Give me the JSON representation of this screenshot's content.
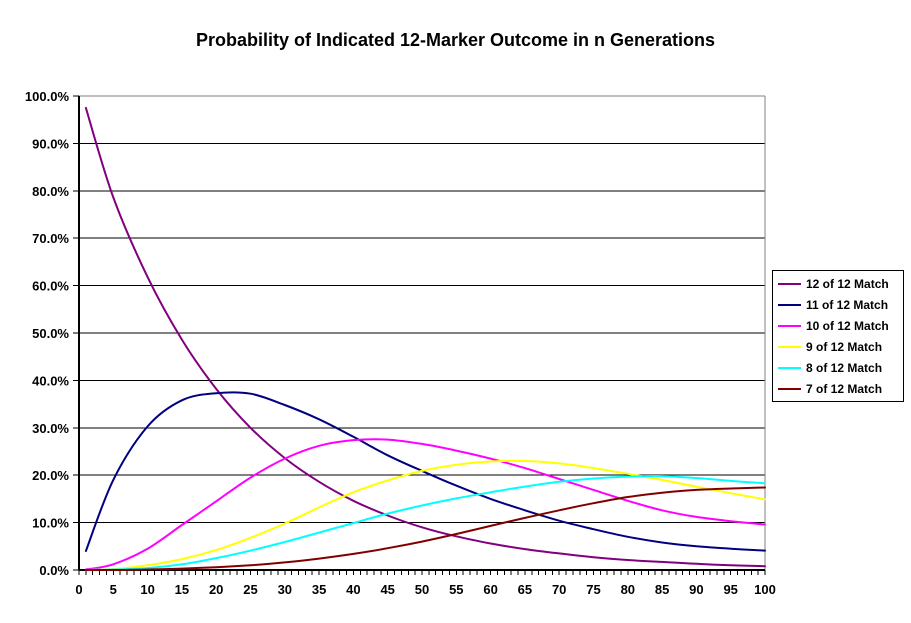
{
  "chart_data": {
    "type": "line",
    "title": "Probability of Indicated 12-Marker Outcome in n Generations",
    "xlabel": "",
    "ylabel": "",
    "x": [
      1,
      5,
      10,
      15,
      20,
      25,
      30,
      35,
      40,
      45,
      50,
      55,
      60,
      65,
      70,
      75,
      80,
      85,
      90,
      95,
      100
    ],
    "x_axis": {
      "min": 0,
      "max": 100,
      "major_tick_step": 5,
      "minor_tick_step": 1,
      "tick_labels": [
        "0",
        "5",
        "10",
        "15",
        "20",
        "25",
        "30",
        "35",
        "40",
        "45",
        "50",
        "55",
        "60",
        "65",
        "70",
        "75",
        "80",
        "85",
        "90",
        "95",
        "100"
      ]
    },
    "y_axis": {
      "min": 0,
      "max": 100,
      "major_tick_step": 10,
      "tick_labels": [
        "100.0%",
        "90.0%",
        "80.0%",
        "70.0%",
        "60.0%",
        "50.0%",
        "40.0%",
        "30.0%",
        "20.0%",
        "10.0%",
        "0.0%"
      ],
      "format": "percent"
    },
    "grid": "horizontal-black",
    "legend_position": "right",
    "series": [
      {
        "name": "12 of 12 Match",
        "color": "#800080",
        "values": [
          97.5,
          78.6,
          61.8,
          48.6,
          38.2,
          30.0,
          23.6,
          18.6,
          14.6,
          11.5,
          9.0,
          7.1,
          5.6,
          4.4,
          3.5,
          2.7,
          2.1,
          1.7,
          1.3,
          1.0,
          0.8
        ]
      },
      {
        "name": "11 of 12 Match",
        "color": "#000080",
        "values": [
          4.0,
          19.0,
          30.3,
          35.8,
          37.3,
          37.2,
          34.8,
          31.8,
          28.1,
          24.2,
          20.9,
          17.8,
          15.0,
          12.6,
          10.4,
          8.6,
          7.0,
          5.8,
          5.0,
          4.5,
          4.1
        ]
      },
      {
        "name": "10 of 12 Match",
        "color": "#FF00FF",
        "values": [
          0.1,
          1.2,
          4.5,
          9.5,
          14.5,
          19.5,
          23.5,
          26.2,
          27.4,
          27.5,
          26.6,
          25.2,
          23.5,
          21.5,
          19.2,
          16.9,
          14.6,
          12.6,
          11.2,
          10.3,
          9.6
        ]
      },
      {
        "name": "9 of 12 Match",
        "color": "#FFFF00",
        "values": [
          0.0,
          0.2,
          1.0,
          2.3,
          4.2,
          6.8,
          9.8,
          13.2,
          16.4,
          18.9,
          20.9,
          22.2,
          22.9,
          23.0,
          22.5,
          21.5,
          20.3,
          19.0,
          17.6,
          16.2,
          14.9
        ]
      },
      {
        "name": "8 of 12 Match",
        "color": "#00FFFF",
        "values": [
          0.0,
          0.1,
          0.4,
          1.2,
          2.5,
          4.1,
          5.9,
          7.9,
          9.9,
          11.9,
          13.6,
          15.1,
          16.4,
          17.6,
          18.6,
          19.3,
          19.7,
          19.8,
          19.4,
          18.8,
          18.3
        ]
      },
      {
        "name": "7 of 12 Match",
        "color": "#800000",
        "values": [
          0.0,
          0.0,
          0.1,
          0.3,
          0.6,
          1.0,
          1.6,
          2.4,
          3.4,
          4.6,
          6.0,
          7.6,
          9.3,
          11.0,
          12.6,
          14.1,
          15.4,
          16.3,
          16.9,
          17.2,
          17.4
        ]
      }
    ]
  },
  "colors": {
    "background": "#FFFFFF",
    "gridline": "#000000",
    "axis": "#000000",
    "plot_border": "#808080",
    "legend_border": "#000000",
    "legend_background": "#FFFFFF",
    "title_color": "#000000"
  }
}
